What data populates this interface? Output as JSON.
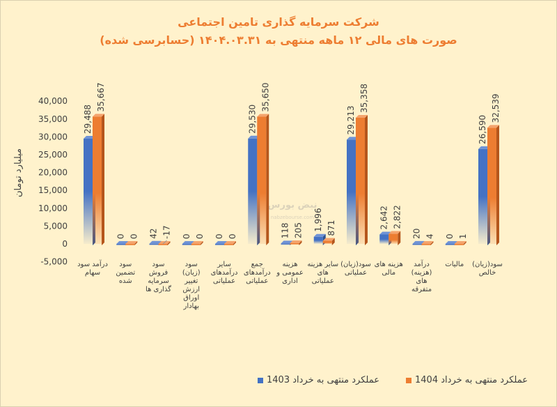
{
  "title": "شرکت سرمایه گذاری تامین اجتماعی",
  "subtitle": "صورت های مالی ۱۲ ماهه منتهی به ۱۴۰۴.۰۳.۳۱ (حسابرسی شده)",
  "watermark": {
    "logo_text": "نبض بورس",
    "url_text": "nabzebourse.com"
  },
  "colors": {
    "series_1403": "#4472C4",
    "series_1404": "#ED7D31",
    "title": "#ED7D31",
    "background": "#FFF2CC"
  },
  "chart_data": {
    "type": "bar",
    "title": "شرکت سرمایه گذاری تامین اجتماعی",
    "ylabel": "میلیارد تومان",
    "xlabel": "",
    "ylim": [
      -5000,
      40000
    ],
    "yticks": [
      -5000,
      0,
      5000,
      10000,
      15000,
      20000,
      25000,
      30000,
      35000,
      40000
    ],
    "ytick_labels": [
      "-5,000",
      "0",
      "5,000",
      "10,000",
      "15,000",
      "20,000",
      "25,000",
      "30,000",
      "35,000",
      "40,000"
    ],
    "grid": false,
    "legend_position": "bottom-right",
    "categories": [
      "درآمد سود سهام",
      "سود تضمین شده",
      "سود فروش سرمایه گذاری ها",
      "سود (زیان) تغییر ارزش اوراق بهادار",
      "سایر درآمدهای عملیاتی",
      "جمع درآمدهای عملیاتی",
      "هزینه عمومی و اداری",
      "سایر هزینه های عملیاتی",
      "سود(زیان)عملیاتی",
      "هزینه های مالی",
      "درآمد (هزینه) های متفرقه",
      "مالیات",
      "سود(زیان) خالص"
    ],
    "series": [
      {
        "name": "عملکرد منتهی به خرداد 1403",
        "values": [
          29488,
          0,
          42,
          0,
          0,
          29530,
          118,
          1996,
          29213,
          2642,
          20,
          0,
          26590
        ],
        "labels": [
          "29,488",
          "0",
          "42",
          "0",
          "0",
          "29,530",
          "118",
          "1,996",
          "29,213",
          "2,642",
          "20",
          "0",
          "26,590"
        ]
      },
      {
        "name": "عملکرد منتهی به خرداد 1404",
        "values": [
          35667,
          0,
          -17,
          0,
          0,
          35650,
          205,
          871,
          35358,
          2822,
          4,
          1,
          32539
        ],
        "labels": [
          "35,667",
          "0",
          "-17",
          "0",
          "0",
          "35,650",
          "205",
          "871",
          "35,358",
          "2,822",
          "4",
          "1",
          "32,539"
        ]
      }
    ]
  }
}
